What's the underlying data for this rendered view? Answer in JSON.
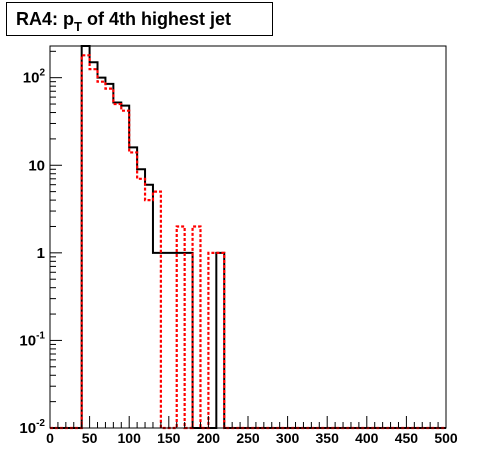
{
  "chart_data": {
    "type": "histogram",
    "title": "RA4: p_T of 4th highest jet",
    "title_parts": {
      "pre": "RA4: p",
      "sub": "T",
      "post": " of 4th highest jet"
    },
    "xlabel": "",
    "ylabel": "",
    "xlim": [
      0,
      500
    ],
    "ylim": [
      0.01,
      230
    ],
    "yscale": "log",
    "bin_edges": [
      0,
      10,
      20,
      30,
      40,
      50,
      60,
      70,
      80,
      90,
      100,
      110,
      120,
      130,
      140,
      150,
      160,
      170,
      180,
      190,
      200,
      210,
      220,
      230,
      240,
      250,
      260,
      270,
      280,
      290,
      300,
      310,
      320,
      330,
      340,
      350,
      360,
      370,
      380,
      390,
      400,
      410,
      420,
      430,
      440,
      450,
      460,
      470,
      480,
      490,
      500
    ],
    "x_ticks": [
      "0",
      "50",
      "100",
      "150",
      "200",
      "250",
      "300",
      "350",
      "400",
      "450",
      "500"
    ],
    "y_ticks": [
      {
        "value": 0.01,
        "base": "10",
        "exp": "-2"
      },
      {
        "value": 0.1,
        "base": "10",
        "exp": "-1"
      },
      {
        "value": 1,
        "label": "1"
      },
      {
        "value": 10,
        "label": "10"
      },
      {
        "value": 100,
        "base": "10",
        "exp": "2"
      }
    ],
    "grid": false,
    "series": [
      {
        "style": "solid",
        "color": "#000000",
        "values": [
          0,
          0,
          0,
          0,
          230,
          150,
          100,
          85,
          52,
          48,
          16,
          9,
          6,
          1,
          1,
          1,
          1,
          1,
          0,
          0,
          0,
          1,
          0,
          0,
          0,
          0,
          0,
          0,
          0,
          0,
          0,
          0,
          0,
          0,
          0,
          0,
          0,
          0,
          0,
          0,
          0,
          0,
          0,
          0,
          0,
          0,
          0,
          0,
          0,
          0
        ]
      },
      {
        "style": "dotted",
        "color": "#ff0000",
        "values": [
          0,
          0,
          0,
          0,
          180,
          125,
          90,
          75,
          50,
          42,
          14,
          7,
          4,
          5,
          0,
          0,
          2,
          0,
          2,
          0,
          1,
          1,
          0,
          0,
          0,
          0,
          0,
          0,
          0,
          0,
          0,
          0,
          0,
          0,
          0,
          0,
          0,
          0,
          0,
          0,
          0,
          0,
          0,
          0,
          0,
          0,
          0,
          0,
          0,
          0
        ]
      }
    ]
  }
}
